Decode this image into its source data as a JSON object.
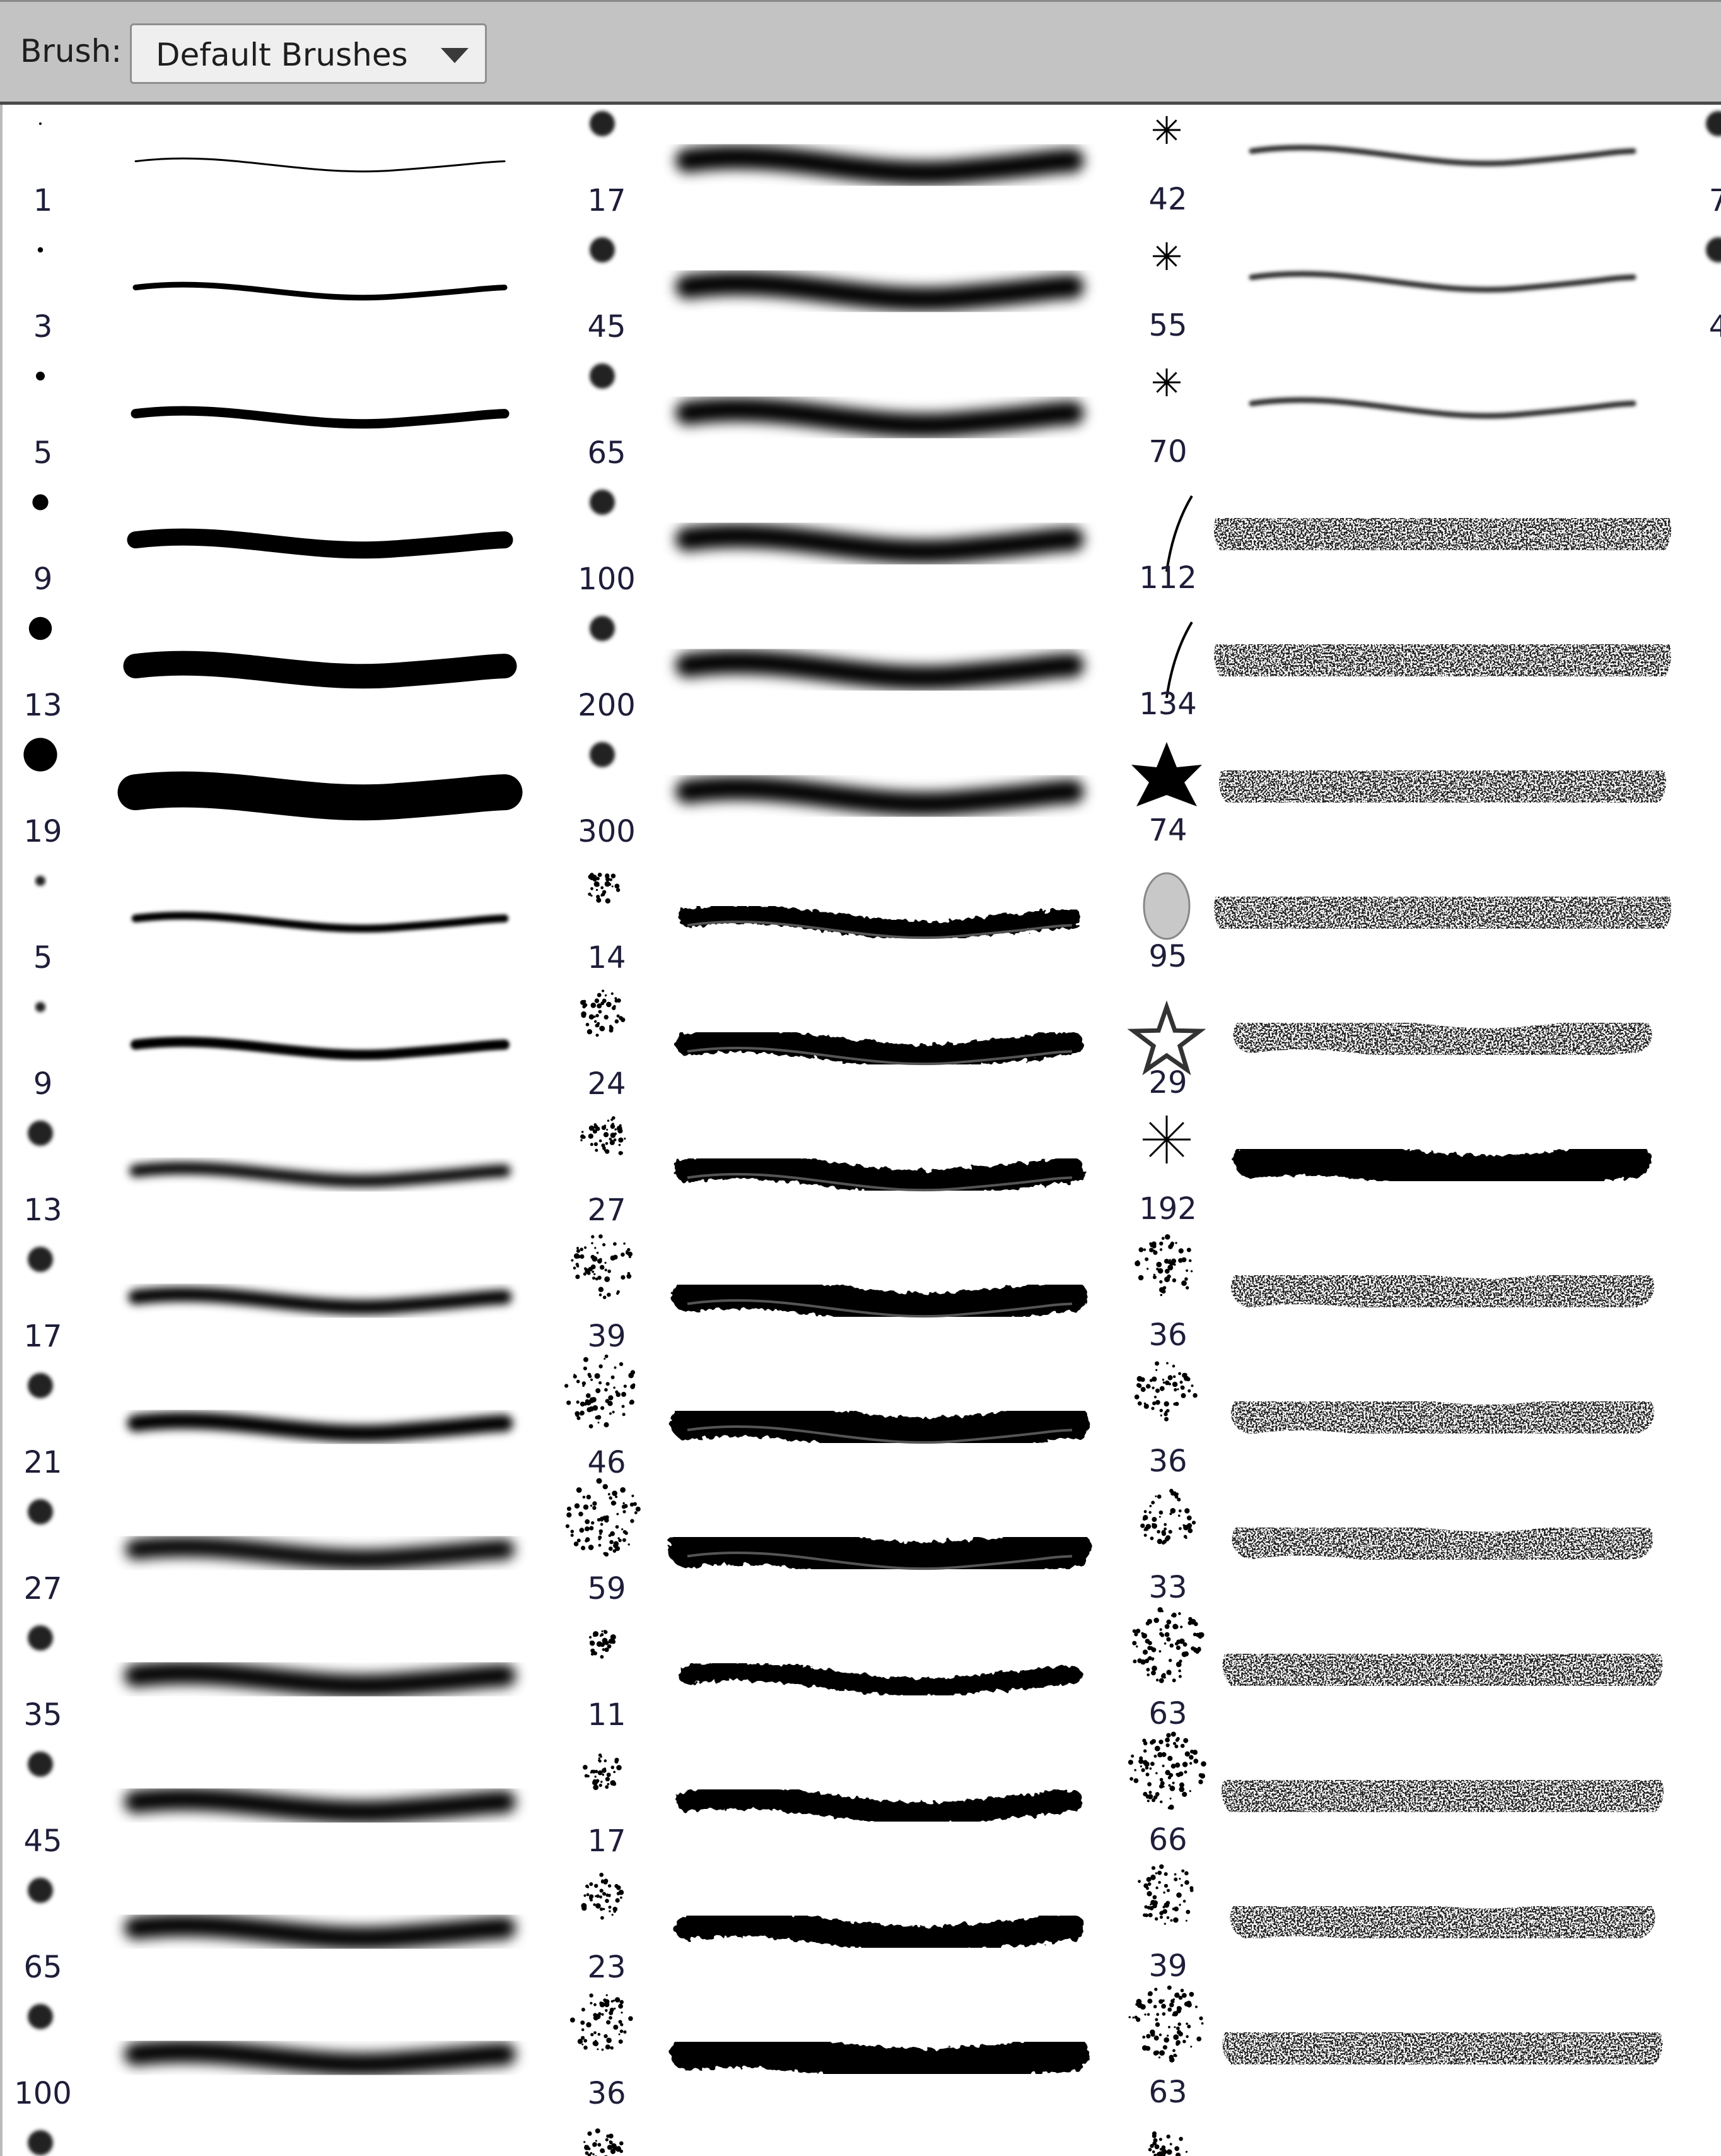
{
  "toolbar": {
    "brush_label": "Brush:",
    "brush_set_value": "Default Brushes",
    "dropdown_icon": "chevron-down-icon"
  },
  "brush_grid": {
    "columns": [
      {
        "brushes": [
          {
            "size": "1",
            "type": "hard"
          },
          {
            "size": "3",
            "type": "hard"
          },
          {
            "size": "5",
            "type": "hard"
          },
          {
            "size": "9",
            "type": "hard"
          },
          {
            "size": "13",
            "type": "hard"
          },
          {
            "size": "19",
            "type": "hard"
          },
          {
            "size": "5",
            "type": "soft"
          },
          {
            "size": "9",
            "type": "soft"
          },
          {
            "size": "13",
            "type": "soft"
          },
          {
            "size": "17",
            "type": "soft"
          },
          {
            "size": "21",
            "type": "soft"
          },
          {
            "size": "27",
            "type": "soft"
          },
          {
            "size": "35",
            "type": "soft"
          },
          {
            "size": "45",
            "type": "soft"
          },
          {
            "size": "65",
            "type": "soft"
          },
          {
            "size": "100",
            "type": "soft"
          },
          {
            "size": "",
            "type": "soft"
          }
        ]
      },
      {
        "brushes": [
          {
            "size": "17",
            "type": "soft"
          },
          {
            "size": "45",
            "type": "soft"
          },
          {
            "size": "65",
            "type": "soft"
          },
          {
            "size": "100",
            "type": "soft"
          },
          {
            "size": "200",
            "type": "soft"
          },
          {
            "size": "300",
            "type": "soft"
          },
          {
            "size": "14",
            "type": "spatter"
          },
          {
            "size": "24",
            "type": "spatter"
          },
          {
            "size": "27",
            "type": "spatter"
          },
          {
            "size": "39",
            "type": "spatter"
          },
          {
            "size": "46",
            "type": "spatter"
          },
          {
            "size": "59",
            "type": "spatter"
          },
          {
            "size": "11",
            "type": "chalk"
          },
          {
            "size": "17",
            "type": "chalk"
          },
          {
            "size": "23",
            "type": "chalk"
          },
          {
            "size": "36",
            "type": "chalk"
          },
          {
            "size": "",
            "type": "chalk"
          }
        ]
      },
      {
        "brushes": [
          {
            "size": "42",
            "type": "star"
          },
          {
            "size": "55",
            "type": "star"
          },
          {
            "size": "70",
            "type": "star"
          },
          {
            "size": "112",
            "type": "grass"
          },
          {
            "size": "134",
            "type": "grass"
          },
          {
            "size": "74",
            "type": "maple"
          },
          {
            "size": "95",
            "type": "leaf"
          },
          {
            "size": "29",
            "type": "starshape"
          },
          {
            "size": "192",
            "type": "burst"
          },
          {
            "size": "36",
            "type": "texture"
          },
          {
            "size": "36",
            "type": "texture"
          },
          {
            "size": "33",
            "type": "texture"
          },
          {
            "size": "63",
            "type": "texture"
          },
          {
            "size": "66",
            "type": "spatter"
          },
          {
            "size": "39",
            "type": "spatter"
          },
          {
            "size": "63",
            "type": "texture"
          },
          {
            "size": "",
            "type": "texture"
          }
        ]
      },
      {
        "brushes": [
          {
            "size": "7",
            "type": "soft"
          },
          {
            "size": "4",
            "type": "soft"
          }
        ]
      }
    ]
  },
  "colors": {
    "toolbar_bg": "#c3c3c3",
    "panel_bg": "#ffffff",
    "label_text": "#1e1e1e",
    "brush_ink": "#000000",
    "stroke_guide": "#a0a0a0"
  }
}
